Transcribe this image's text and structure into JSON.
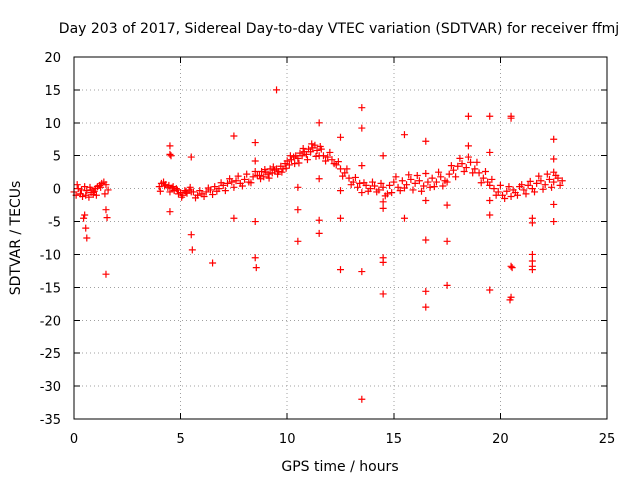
{
  "chart_data": {
    "type": "scatter",
    "title": "Day 203 of 2017, Sidereal Day-to-day VTEC variation (SDTVAR) for receiver ffmj",
    "xlabel": "GPS time / hours",
    "ylabel": "SDTVAR / TECUs",
    "xlim": [
      0,
      25
    ],
    "ylim": [
      -35,
      20
    ],
    "grid": true,
    "marker": "+",
    "series_color": "#ff0000",
    "xticks": [
      0,
      5,
      10,
      15,
      20,
      25
    ],
    "yticks": [
      -35,
      -30,
      -25,
      -20,
      -15,
      -10,
      -5,
      0,
      5,
      10,
      15,
      20
    ],
    "xtick_labels": [
      "0",
      "5",
      "10",
      "15",
      "20",
      "25"
    ],
    "ytick_labels": [
      "-35",
      "-30",
      "-25",
      "-20",
      "-15",
      "-10",
      "-5",
      "0",
      "5",
      "10",
      "15",
      "20"
    ],
    "series": [
      {
        "name": "SDTVAR",
        "points": [
          [
            0.0,
            -0.5
          ],
          [
            0.1,
            -1.0
          ],
          [
            0.2,
            0.0
          ],
          [
            0.3,
            -0.8
          ],
          [
            0.4,
            -1.2
          ],
          [
            0.5,
            0.3
          ],
          [
            0.6,
            -0.3
          ],
          [
            0.7,
            -1.3
          ],
          [
            0.8,
            -0.6
          ],
          [
            0.9,
            -0.9
          ],
          [
            0.15,
            0.6
          ],
          [
            0.35,
            -0.2
          ],
          [
            0.55,
            -1.0
          ],
          [
            0.75,
            0.2
          ],
          [
            0.95,
            -0.4
          ],
          [
            0.5,
            -4.0
          ],
          [
            0.55,
            -6.0
          ],
          [
            0.6,
            -7.5
          ],
          [
            0.45,
            -4.5
          ],
          [
            0.8,
            -0.2
          ],
          [
            0.9,
            -0.6
          ],
          [
            1.0,
            0.0
          ],
          [
            1.1,
            0.3
          ],
          [
            1.2,
            0.5
          ],
          [
            1.3,
            0.8
          ],
          [
            1.4,
            1.0
          ],
          [
            1.5,
            0.6
          ],
          [
            1.6,
            -0.2
          ],
          [
            1.45,
            -0.8
          ],
          [
            1.05,
            -1.0
          ],
          [
            1.25,
            0.2
          ],
          [
            1.5,
            -3.2
          ],
          [
            1.55,
            -4.4
          ],
          [
            1.5,
            -13.0
          ],
          [
            4.0,
            0.3
          ],
          [
            4.1,
            0.8
          ],
          [
            4.2,
            1.0
          ],
          [
            4.3,
            0.6
          ],
          [
            4.4,
            0.2
          ],
          [
            4.5,
            -0.5
          ],
          [
            4.6,
            0.1
          ],
          [
            4.7,
            -0.3
          ],
          [
            4.8,
            0.0
          ],
          [
            4.9,
            -0.8
          ],
          [
            5.0,
            -0.6
          ],
          [
            5.1,
            -1.0
          ],
          [
            5.2,
            -0.3
          ],
          [
            5.3,
            -0.7
          ],
          [
            5.4,
            -0.2
          ],
          [
            5.5,
            -0.5
          ],
          [
            4.05,
            -0.4
          ],
          [
            4.25,
            0.4
          ],
          [
            4.45,
            0.5
          ],
          [
            4.65,
            0.3
          ],
          [
            4.85,
            -0.2
          ],
          [
            5.05,
            -1.3
          ],
          [
            5.25,
            -0.5
          ],
          [
            5.45,
            0.2
          ],
          [
            4.5,
            6.5
          ],
          [
            4.5,
            5.2
          ],
          [
            4.55,
            5.0
          ],
          [
            4.5,
            -3.5
          ],
          [
            5.5,
            4.8
          ],
          [
            5.5,
            -7.0
          ],
          [
            5.55,
            -9.3
          ],
          [
            5.6,
            -0.5
          ],
          [
            5.8,
            -1.0
          ],
          [
            6.0,
            -0.8
          ],
          [
            6.2,
            -0.5
          ],
          [
            6.4,
            -0.2
          ],
          [
            6.6,
            0.3
          ],
          [
            6.8,
            0.0
          ],
          [
            7.0,
            0.5
          ],
          [
            7.2,
            0.8
          ],
          [
            7.4,
            1.0
          ],
          [
            7.6,
            1.2
          ],
          [
            7.8,
            0.8
          ],
          [
            8.0,
            1.4
          ],
          [
            8.2,
            1.0
          ],
          [
            8.4,
            1.8
          ],
          [
            8.6,
            2.0
          ],
          [
            5.7,
            -1.4
          ],
          [
            5.9,
            -0.3
          ],
          [
            6.1,
            -1.2
          ],
          [
            6.3,
            0.1
          ],
          [
            6.5,
            -0.9
          ],
          [
            6.7,
            -0.4
          ],
          [
            6.9,
            0.9
          ],
          [
            7.1,
            -0.3
          ],
          [
            7.3,
            1.5
          ],
          [
            7.5,
            0.2
          ],
          [
            7.7,
            1.9
          ],
          [
            7.9,
            0.4
          ],
          [
            8.1,
            2.2
          ],
          [
            8.3,
            0.9
          ],
          [
            8.5,
            2.6
          ],
          [
            6.5,
            -11.3
          ],
          [
            7.5,
            8.0
          ],
          [
            7.5,
            -4.5
          ],
          [
            8.5,
            7.0
          ],
          [
            8.5,
            4.2
          ],
          [
            8.5,
            -5.0
          ],
          [
            8.5,
            -10.5
          ],
          [
            8.55,
            -12.0
          ],
          [
            8.7,
            2.0
          ],
          [
            8.8,
            2.6
          ],
          [
            8.9,
            1.8
          ],
          [
            9.0,
            2.5
          ],
          [
            9.1,
            2.2
          ],
          [
            9.2,
            3.0
          ],
          [
            9.3,
            2.4
          ],
          [
            9.4,
            2.8
          ],
          [
            9.5,
            3.0
          ],
          [
            9.6,
            2.6
          ],
          [
            9.7,
            3.4
          ],
          [
            9.8,
            3.0
          ],
          [
            9.9,
            3.8
          ],
          [
            10.0,
            4.2
          ],
          [
            10.1,
            3.6
          ],
          [
            10.2,
            4.4
          ],
          [
            10.3,
            4.8
          ],
          [
            10.4,
            5.0
          ],
          [
            10.5,
            4.6
          ],
          [
            10.6,
            5.4
          ],
          [
            10.7,
            5.0
          ],
          [
            10.8,
            5.6
          ],
          [
            10.9,
            5.2
          ],
          [
            11.0,
            6.0
          ],
          [
            11.1,
            5.6
          ],
          [
            11.2,
            6.2
          ],
          [
            11.3,
            6.6
          ],
          [
            11.4,
            5.8
          ],
          [
            11.5,
            5.0
          ],
          [
            11.6,
            6.0
          ],
          [
            8.75,
            1.5
          ],
          [
            8.95,
            2.9
          ],
          [
            9.15,
            1.6
          ],
          [
            9.35,
            3.3
          ],
          [
            9.55,
            2.2
          ],
          [
            9.75,
            2.5
          ],
          [
            9.95,
            3.1
          ],
          [
            10.15,
            5.0
          ],
          [
            10.35,
            3.8
          ],
          [
            10.55,
            3.9
          ],
          [
            10.75,
            6.1
          ],
          [
            10.95,
            4.4
          ],
          [
            11.15,
            6.8
          ],
          [
            11.35,
            4.9
          ],
          [
            11.55,
            6.4
          ],
          [
            9.5,
            15.0
          ],
          [
            10.5,
            0.2
          ],
          [
            10.5,
            -3.2
          ],
          [
            10.5,
            -8.0
          ],
          [
            11.5,
            10.0
          ],
          [
            11.5,
            1.5
          ],
          [
            11.5,
            -4.8
          ],
          [
            11.5,
            -6.8
          ],
          [
            11.7,
            5.0
          ],
          [
            11.9,
            4.8
          ],
          [
            12.1,
            4.4
          ],
          [
            12.3,
            3.6
          ],
          [
            12.5,
            3.0
          ],
          [
            12.7,
            2.4
          ],
          [
            12.9,
            1.6
          ],
          [
            13.1,
            1.0
          ],
          [
            13.3,
            0.2
          ],
          [
            13.5,
            -0.6
          ],
          [
            13.7,
            0.5
          ],
          [
            13.9,
            0.0
          ],
          [
            14.1,
            0.4
          ],
          [
            14.3,
            -0.2
          ],
          [
            14.5,
            0.2
          ],
          [
            14.7,
            -0.8
          ],
          [
            11.8,
            4.2
          ],
          [
            12.0,
            5.5
          ],
          [
            12.2,
            3.8
          ],
          [
            12.4,
            4.1
          ],
          [
            12.6,
            1.9
          ],
          [
            12.8,
            3.0
          ],
          [
            13.0,
            0.6
          ],
          [
            13.2,
            1.7
          ],
          [
            13.4,
            0.8
          ],
          [
            13.6,
            0.9
          ],
          [
            13.8,
            -0.4
          ],
          [
            14.0,
            1.0
          ],
          [
            14.2,
            -0.5
          ],
          [
            14.4,
            0.8
          ],
          [
            14.6,
            -1.1
          ],
          [
            12.5,
            7.8
          ],
          [
            12.5,
            -0.3
          ],
          [
            12.5,
            -4.5
          ],
          [
            12.5,
            -12.3
          ],
          [
            13.5,
            12.3
          ],
          [
            13.5,
            9.2
          ],
          [
            13.5,
            3.5
          ],
          [
            13.5,
            -12.6
          ],
          [
            13.5,
            -32.0
          ],
          [
            14.5,
            5.0
          ],
          [
            14.5,
            -2.0
          ],
          [
            14.5,
            -3.0
          ],
          [
            14.5,
            -10.5
          ],
          [
            14.5,
            -11.2
          ],
          [
            14.5,
            -16.0
          ],
          [
            14.8,
            0.5
          ],
          [
            15.0,
            1.0
          ],
          [
            15.2,
            0.2
          ],
          [
            15.4,
            1.2
          ],
          [
            15.6,
            0.6
          ],
          [
            15.8,
            1.4
          ],
          [
            16.0,
            0.8
          ],
          [
            16.2,
            1.2
          ],
          [
            16.4,
            0.4
          ],
          [
            16.6,
            1.0
          ],
          [
            16.8,
            1.6
          ],
          [
            17.0,
            1.0
          ],
          [
            17.2,
            1.8
          ],
          [
            17.4,
            1.2
          ],
          [
            17.6,
            2.2
          ],
          [
            17.8,
            2.8
          ],
          [
            18.0,
            3.4
          ],
          [
            18.2,
            3.8
          ],
          [
            18.4,
            3.2
          ],
          [
            18.6,
            4.0
          ],
          [
            18.8,
            3.0
          ],
          [
            19.0,
            2.4
          ],
          [
            19.2,
            1.6
          ],
          [
            19.4,
            1.0
          ],
          [
            14.9,
            -0.6
          ],
          [
            15.1,
            1.8
          ],
          [
            15.3,
            -0.3
          ],
          [
            15.5,
            0.1
          ],
          [
            15.7,
            2.1
          ],
          [
            15.9,
            -0.2
          ],
          [
            16.1,
            2.0
          ],
          [
            16.3,
            -0.4
          ],
          [
            16.5,
            2.3
          ],
          [
            16.7,
            0.2
          ],
          [
            16.9,
            0.3
          ],
          [
            17.1,
            2.5
          ],
          [
            17.3,
            0.4
          ],
          [
            17.5,
            1.0
          ],
          [
            17.7,
            3.5
          ],
          [
            17.9,
            1.8
          ],
          [
            18.1,
            4.6
          ],
          [
            18.3,
            2.6
          ],
          [
            18.5,
            4.8
          ],
          [
            18.7,
            2.4
          ],
          [
            18.9,
            4.0
          ],
          [
            19.1,
            0.9
          ],
          [
            19.3,
            2.6
          ],
          [
            15.5,
            8.2
          ],
          [
            15.5,
            -4.5
          ],
          [
            16.5,
            7.2
          ],
          [
            16.5,
            -1.8
          ],
          [
            16.5,
            -7.8
          ],
          [
            16.5,
            -15.6
          ],
          [
            16.5,
            -18.0
          ],
          [
            17.5,
            -2.5
          ],
          [
            17.5,
            -8.0
          ],
          [
            17.5,
            -14.7
          ],
          [
            18.5,
            11.0
          ],
          [
            18.5,
            6.5
          ],
          [
            19.5,
            11.0
          ],
          [
            19.5,
            5.5
          ],
          [
            19.5,
            -1.8
          ],
          [
            19.5,
            -4.0
          ],
          [
            19.5,
            -15.4
          ],
          [
            19.5,
            0.5
          ],
          [
            19.7,
            0.0
          ],
          [
            19.9,
            -0.5
          ],
          [
            20.1,
            -1.0
          ],
          [
            20.3,
            -0.4
          ],
          [
            20.5,
            -1.2
          ],
          [
            20.7,
            -0.6
          ],
          [
            20.9,
            0.3
          ],
          [
            21.1,
            -0.2
          ],
          [
            21.3,
            0.5
          ],
          [
            21.5,
            0.0
          ],
          [
            21.7,
            0.8
          ],
          [
            21.9,
            1.2
          ],
          [
            22.1,
            0.6
          ],
          [
            22.3,
            1.4
          ],
          [
            22.5,
            1.0
          ],
          [
            22.7,
            1.6
          ],
          [
            22.9,
            1.2
          ],
          [
            19.6,
            1.4
          ],
          [
            19.8,
            -1.0
          ],
          [
            20.0,
            0.5
          ],
          [
            20.2,
            -1.5
          ],
          [
            20.4,
            0.3
          ],
          [
            20.6,
            -0.2
          ],
          [
            20.8,
            -1.0
          ],
          [
            21.0,
            0.6
          ],
          [
            21.2,
            -0.8
          ],
          [
            21.4,
            1.1
          ],
          [
            21.6,
            -0.5
          ],
          [
            21.8,
            1.9
          ],
          [
            22.0,
            -0.1
          ],
          [
            22.2,
            2.2
          ],
          [
            22.4,
            0.2
          ],
          [
            22.6,
            2.0
          ],
          [
            22.8,
            0.5
          ],
          [
            20.5,
            11.0
          ],
          [
            20.5,
            10.7
          ],
          [
            20.5,
            -11.8
          ],
          [
            20.55,
            -12.0
          ],
          [
            20.5,
            -16.5
          ],
          [
            20.45,
            -16.9
          ],
          [
            21.5,
            -4.5
          ],
          [
            21.5,
            -5.2
          ],
          [
            21.5,
            -10.0
          ],
          [
            21.5,
            -11.0
          ],
          [
            21.5,
            -11.8
          ],
          [
            21.5,
            -12.3
          ],
          [
            22.5,
            7.5
          ],
          [
            22.5,
            4.5
          ],
          [
            22.5,
            2.5
          ],
          [
            22.5,
            -2.4
          ],
          [
            22.5,
            -5.0
          ]
        ]
      }
    ]
  }
}
